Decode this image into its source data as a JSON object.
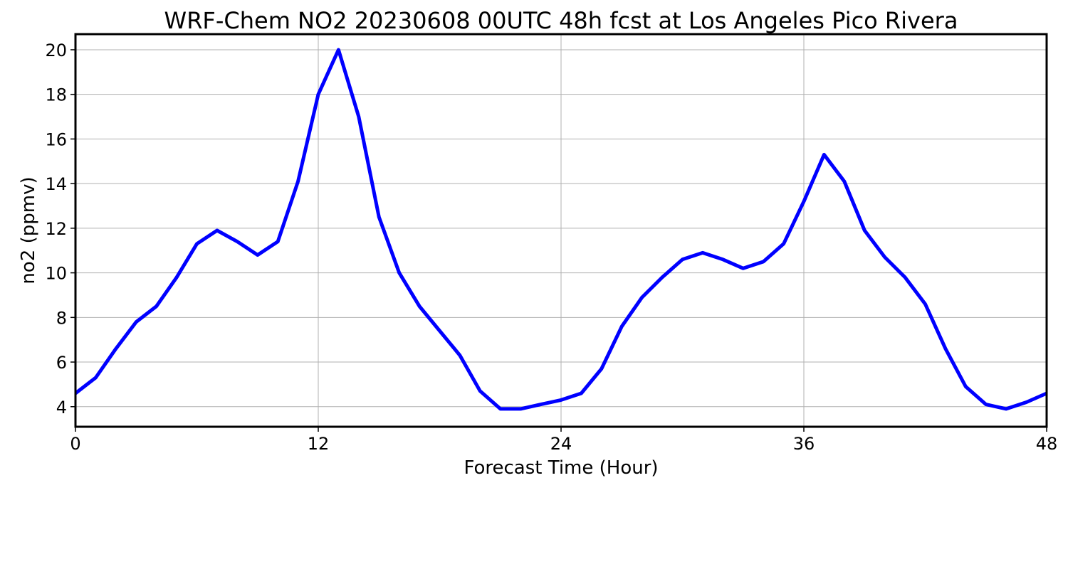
{
  "colors": {
    "line": "#0000ff",
    "grid": "#b0b0b0",
    "axes": "#000000",
    "background": "#ffffff"
  },
  "chart_data": {
    "type": "line",
    "title": "WRF-Chem NO2  20230608 00UTC 48h fcst at Los Angeles Pico Rivera",
    "xlabel": "Forecast Time (Hour)",
    "ylabel": "no2  (ppmv)",
    "xlim": [
      0,
      48
    ],
    "ylim": [
      3.1,
      20.7
    ],
    "xticks": [
      0,
      12,
      24,
      36,
      48
    ],
    "yticks": [
      4,
      6,
      8,
      10,
      12,
      14,
      16,
      18,
      20
    ],
    "grid": true,
    "legend": "none",
    "series": [
      {
        "x": [
          0,
          1,
          2,
          3,
          4,
          5,
          6,
          7,
          8,
          9,
          10,
          11,
          12,
          13,
          14,
          15,
          16,
          17,
          18,
          19,
          20,
          21,
          22,
          23,
          24,
          25,
          26,
          27,
          28,
          29,
          30,
          31,
          32,
          33,
          34,
          35,
          36,
          37,
          38,
          39,
          40,
          41,
          42,
          43,
          44,
          45,
          46,
          47,
          48
        ],
        "values": [
          4.6,
          5.3,
          6.6,
          7.8,
          8.5,
          9.8,
          11.3,
          11.9,
          11.4,
          10.8,
          11.4,
          14.1,
          18.0,
          20.0,
          17.0,
          12.5,
          10.0,
          8.5,
          7.4,
          6.3,
          4.7,
          3.9,
          3.9,
          4.1,
          4.3,
          4.6,
          5.7,
          7.6,
          8.9,
          9.8,
          10.6,
          10.9,
          10.6,
          10.2,
          10.5,
          11.3,
          13.2,
          15.3,
          14.1,
          11.9,
          10.7,
          9.8,
          8.6,
          6.6,
          4.9,
          4.1,
          3.9,
          4.2,
          4.6
        ]
      }
    ]
  }
}
